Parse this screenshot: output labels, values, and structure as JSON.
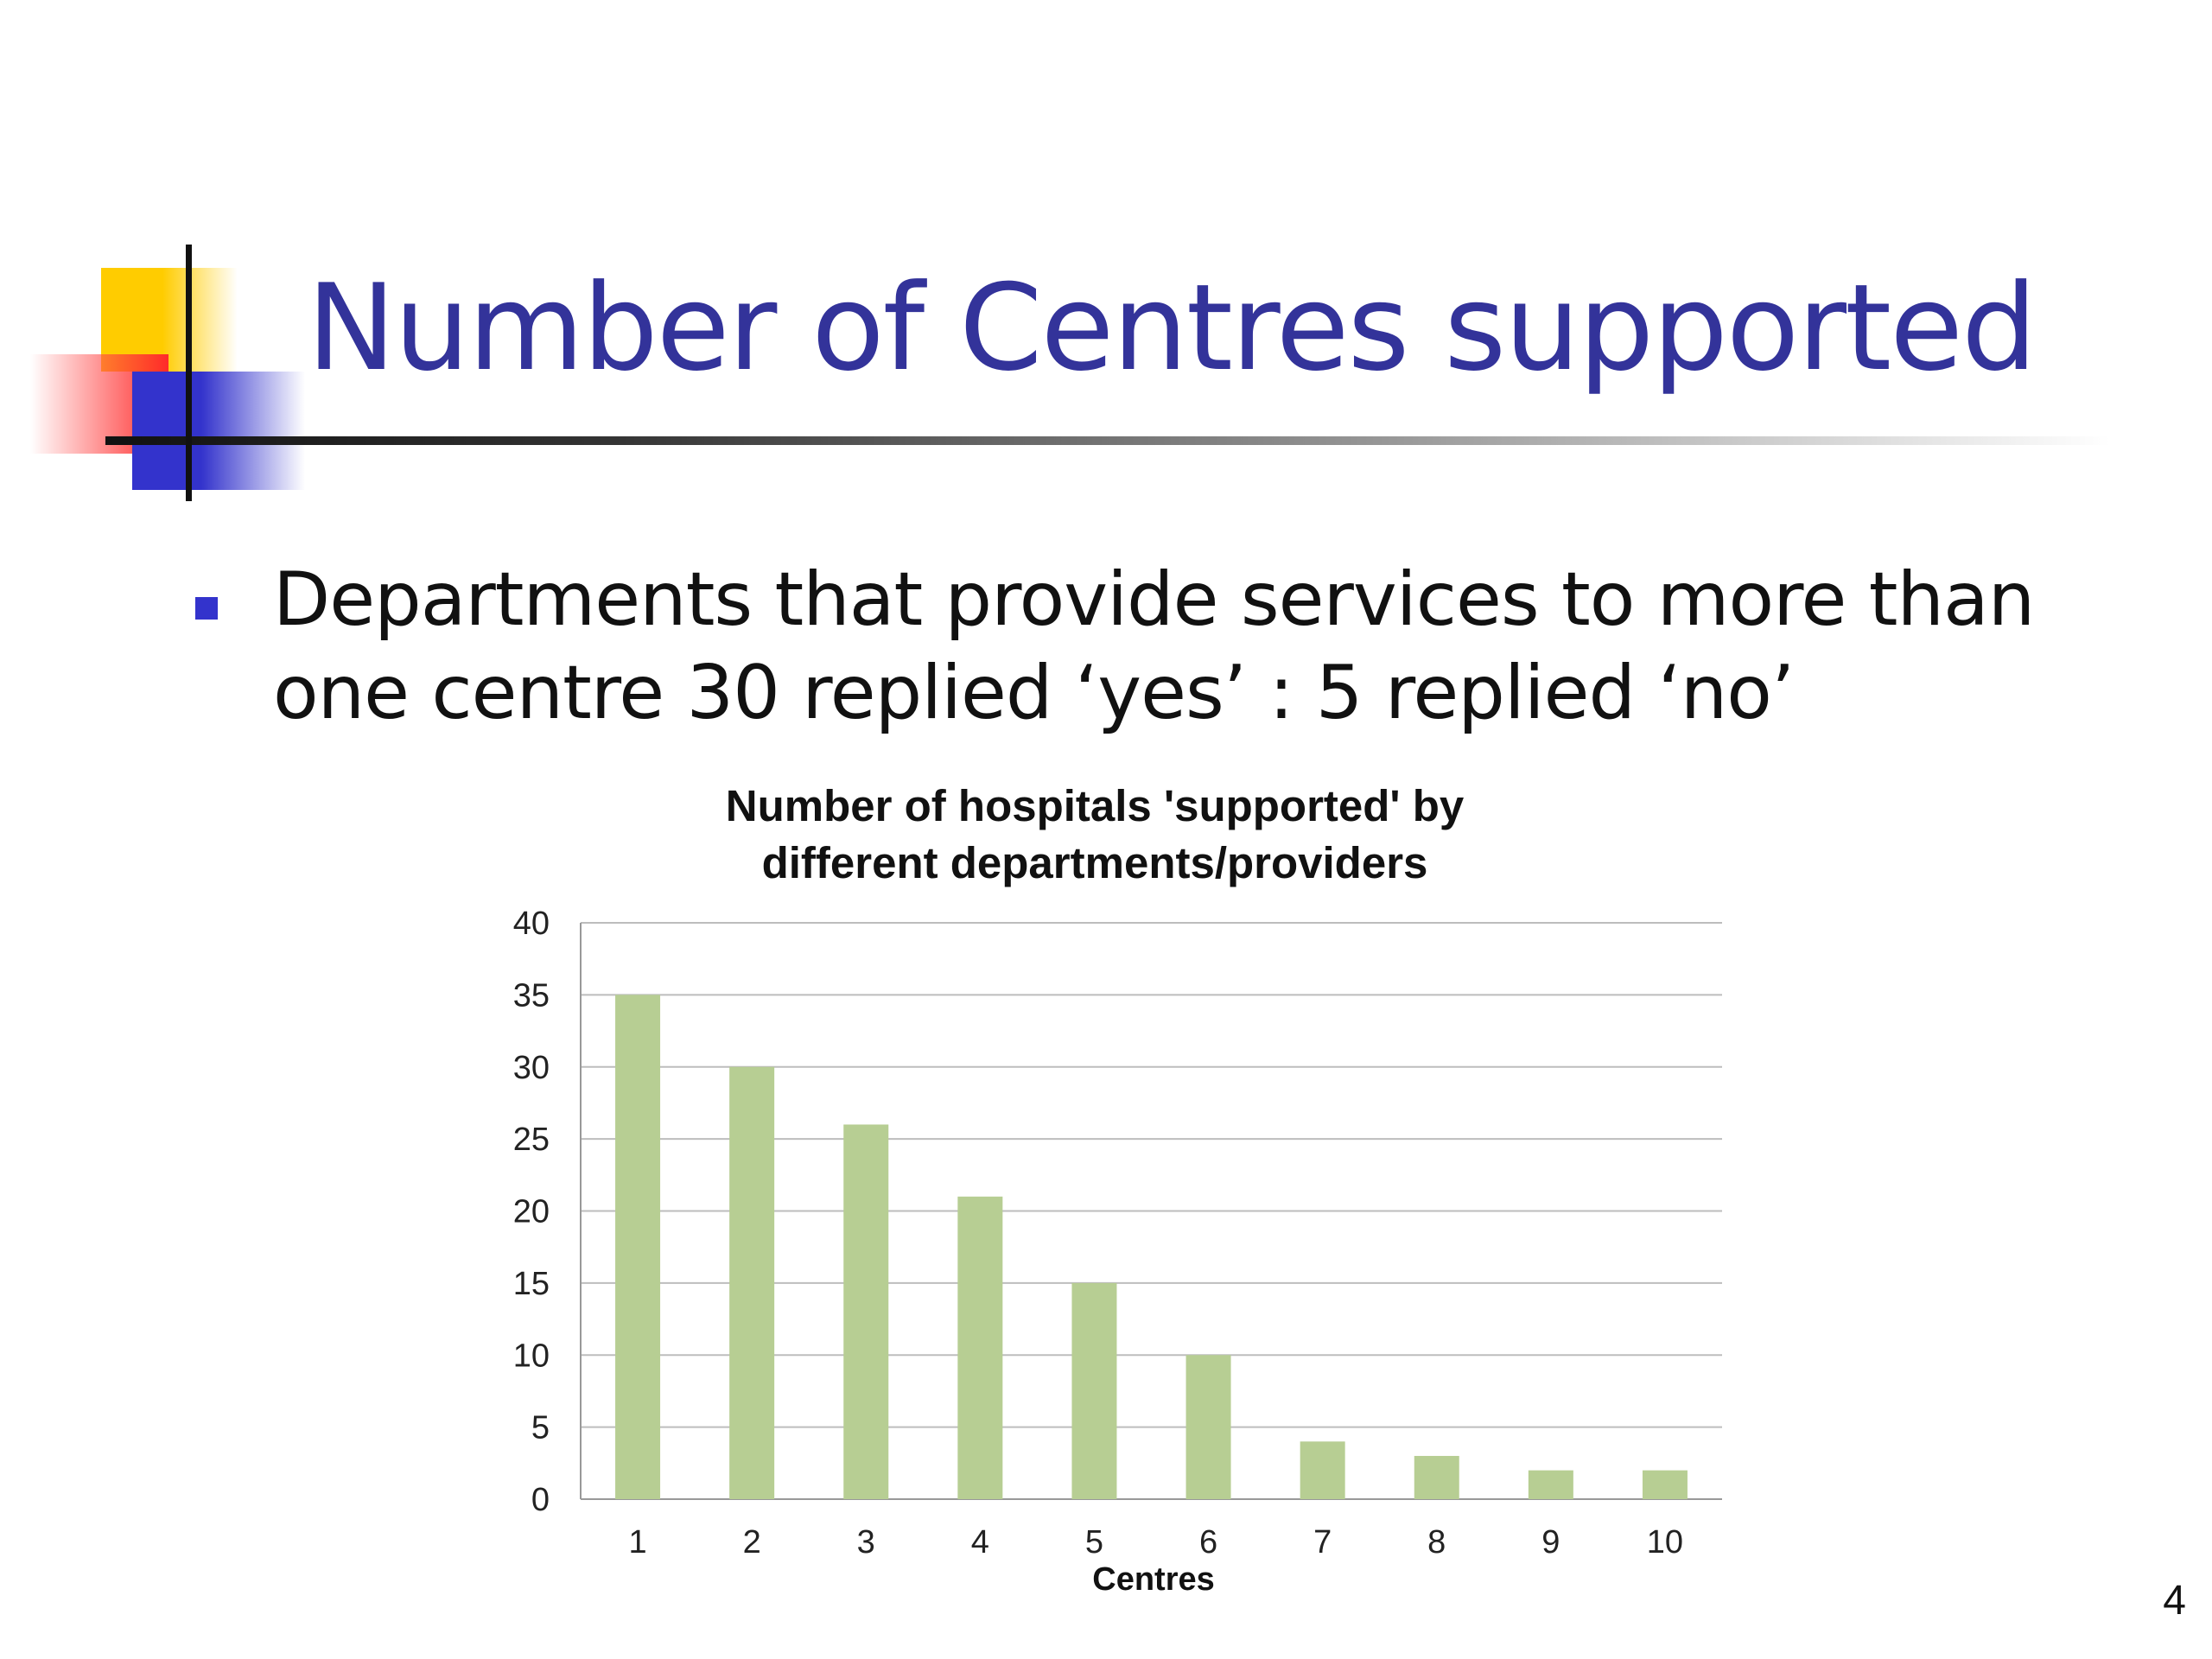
{
  "slide": {
    "title": "Number of Centres supported",
    "bullet": "Departments that provide services to more than one centre 30 replied ‘yes’ : 5 replied ‘no’",
    "page_number": "4"
  },
  "colors": {
    "title": "#33339a",
    "bullet_marker": "#3333cc",
    "bar": "#b7ce93",
    "deco_yellow": "#ffcc00",
    "deco_red": "#ff2a2a",
    "deco_blue": "#3333cc"
  },
  "chart_data": {
    "type": "bar",
    "title_lines": [
      "Number of hospitals 'supported' by",
      "different departments/providers"
    ],
    "xlabel": "Centres",
    "ylabel": "",
    "categories": [
      "1",
      "2",
      "3",
      "4",
      "5",
      "6",
      "7",
      "8",
      "9",
      "10"
    ],
    "values": [
      35,
      30,
      26,
      21,
      15,
      10,
      4,
      3,
      2,
      2
    ],
    "ylim": [
      0,
      40
    ],
    "yticks": [
      0,
      5,
      10,
      15,
      20,
      25,
      30,
      35,
      40
    ],
    "grid": true,
    "legend": "none"
  }
}
